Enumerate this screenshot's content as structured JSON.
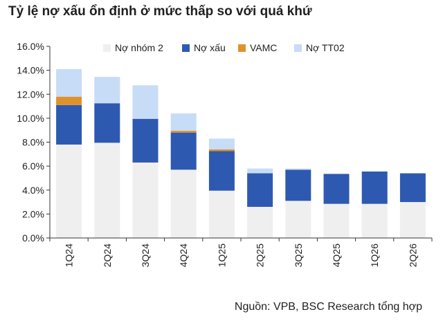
{
  "chart_data": {
    "type": "bar",
    "stacked": true,
    "title": "Tỷ lệ nợ xấu ổn định ở mức thấp so với quá khứ",
    "source": "Nguồn: VPB, BSC Research tổng hợp",
    "categories": [
      "1Q24",
      "2Q24",
      "3Q24",
      "4Q24",
      "1Q25",
      "2Q25",
      "3Q25",
      "4Q25",
      "1Q26",
      "2Q26"
    ],
    "series": [
      {
        "name": "Nợ nhóm 2",
        "color": "#efefef",
        "values": [
          7.8,
          7.95,
          6.3,
          5.7,
          3.95,
          2.6,
          3.1,
          2.85,
          2.85,
          3.0
        ]
      },
      {
        "name": "Nợ xấu",
        "color": "#2e59b1",
        "values": [
          3.3,
          3.3,
          3.65,
          3.1,
          3.3,
          2.8,
          2.6,
          2.5,
          2.7,
          2.4
        ]
      },
      {
        "name": "VAMC",
        "color": "#e0922a",
        "values": [
          0.7,
          0.0,
          0.0,
          0.15,
          0.15,
          0.0,
          0.0,
          0.0,
          0.0,
          0.0
        ]
      },
      {
        "name": "Nợ TT02",
        "color": "#c7dcf6",
        "values": [
          2.3,
          2.2,
          2.8,
          1.45,
          0.9,
          0.4,
          0.1,
          0.0,
          0.0,
          0.0
        ]
      }
    ],
    "y_ticks": [
      "0.0%",
      "2.0%",
      "4.0%",
      "6.0%",
      "8.0%",
      "10.0%",
      "12.0%",
      "14.0%",
      "16.0%"
    ],
    "ylim": [
      0,
      16
    ],
    "xlabel": "",
    "ylabel": "",
    "grid": false,
    "legend_position": "top"
  }
}
